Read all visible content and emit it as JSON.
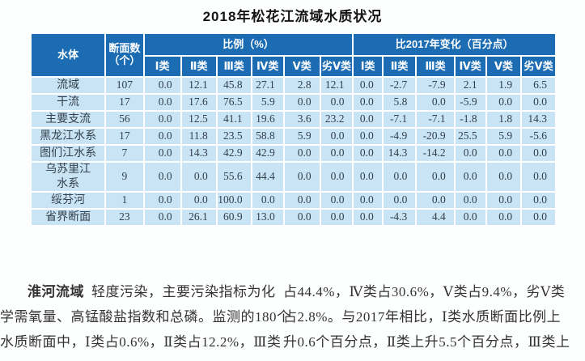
{
  "title": "2018年松花江流域水质状况",
  "colors": {
    "header_blue": "#1b6cb3",
    "row_light_blue": "#c9e4f5",
    "grid_white": "#ffffff",
    "body_text": "#333333"
  },
  "table": {
    "header": {
      "water_body": "水体",
      "section_count": "断面数\n（个）",
      "proportion_group": "比例（%）",
      "change_group": "比2017年变化（百分点）",
      "class_labels": [
        "Ⅰ类",
        "Ⅱ类",
        "Ⅲ类",
        "Ⅳ类",
        "Ⅴ类",
        "劣Ⅴ类"
      ]
    },
    "rows": [
      {
        "name": "流域",
        "count": "107",
        "proportion": [
          "0.0",
          "12.1",
          "45.8",
          "27.1",
          "2.8",
          "12.1"
        ],
        "change": [
          "0.0",
          "-2.7",
          "-7.9",
          "2.1",
          "1.9",
          "6.5"
        ]
      },
      {
        "name": "干流",
        "count": "17",
        "proportion": [
          "0.0",
          "17.6",
          "76.5",
          "5.9",
          "0.0",
          "0.0"
        ],
        "change": [
          "0.0",
          "5.8",
          "0.0",
          "-5.9",
          "0.0",
          "0.0"
        ]
      },
      {
        "name": "主要支流",
        "count": "56",
        "proportion": [
          "0.0",
          "12.5",
          "41.1",
          "19.6",
          "3.6",
          "23.2"
        ],
        "change": [
          "0.0",
          "-7.1",
          "-7.1",
          "-1.8",
          "1.8",
          "14.3"
        ]
      },
      {
        "name": "黑龙江水系",
        "count": "17",
        "proportion": [
          "0.0",
          "11.8",
          "23.5",
          "58.8",
          "5.9",
          "0.0"
        ],
        "change": [
          "0.0",
          "-4.9",
          "-20.9",
          "25.5",
          "5.9",
          "-5.6"
        ]
      },
      {
        "name": "图们江水系",
        "count": "7",
        "proportion": [
          "0.0",
          "14.3",
          "42.9",
          "42.9",
          "0.0",
          "0.0"
        ],
        "change": [
          "0.0",
          "14.3",
          "-14.2",
          "0.0",
          "0.0",
          "0.0"
        ]
      },
      {
        "name": "乌苏里江\n水系",
        "count": "9",
        "proportion": [
          "0.0",
          "0.0",
          "55.6",
          "44.4",
          "0.0",
          "0.0"
        ],
        "change": [
          "0.0",
          "0.0",
          "0.0",
          "0.0",
          "0.0",
          "0.0"
        ]
      },
      {
        "name": "绥芬河",
        "count": "1",
        "proportion": [
          "0.0",
          "0.0",
          "100.0",
          "0.0",
          "0.0",
          "0.0"
        ],
        "change": [
          "0.0",
          "0.0",
          "0.0",
          "0.0",
          "0.0",
          "0.0"
        ]
      },
      {
        "name": "省界断面",
        "count": "23",
        "proportion": [
          "0.0",
          "26.1",
          "60.9",
          "13.0",
          "0.0",
          "0.0"
        ],
        "change": [
          "0.0",
          "-4.3",
          "4.4",
          "0.0",
          "0.0",
          "0.0"
        ]
      }
    ]
  },
  "body_text": {
    "left": {
      "lead": "淮河流域",
      "line1_rest": "轻度污染，主要污染指标为化",
      "line2": "学需氧量、高锰酸盐指数和总磷。监测的180个",
      "line3": "水质断面中，Ⅰ类占0.6%，Ⅱ类占12.2%，Ⅲ类"
    },
    "right": {
      "line1": "占44.4%，Ⅳ类占30.6%，Ⅴ类占9.4%，劣Ⅴ类",
      "line2": "占2.8%。与2017年相比，Ⅰ类水质断面比例上",
      "line3": "升0.6个百分点，Ⅱ类上升5.5个百分点，Ⅲ类上"
    }
  }
}
